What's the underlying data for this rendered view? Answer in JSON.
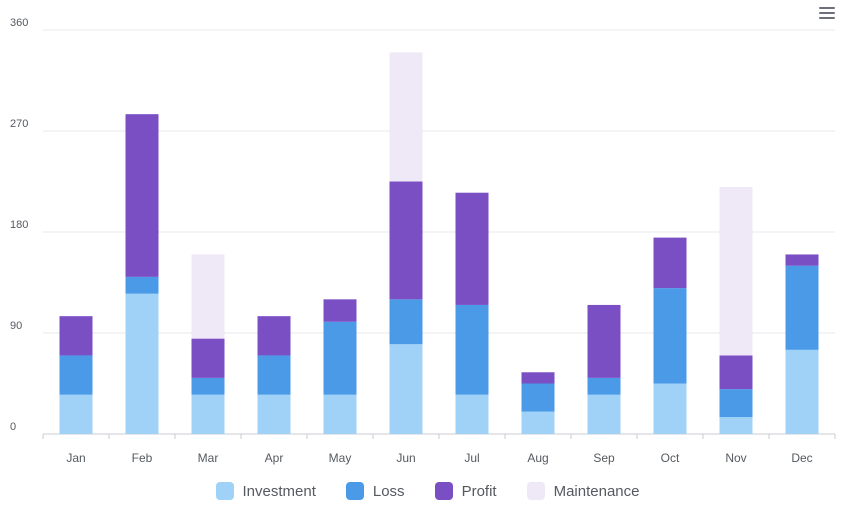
{
  "toolbar": {
    "menu_icon": "hamburger-menu-icon"
  },
  "chart_data": {
    "type": "bar",
    "stacked": true,
    "categories": [
      "Jan",
      "Feb",
      "Mar",
      "Apr",
      "May",
      "Jun",
      "Jul",
      "Aug",
      "Sep",
      "Oct",
      "Nov",
      "Dec"
    ],
    "series": [
      {
        "name": "Investment",
        "color": "#a0d2f8",
        "values": [
          35,
          125,
          35,
          35,
          35,
          80,
          35,
          20,
          35,
          45,
          15,
          75
        ]
      },
      {
        "name": "Loss",
        "color": "#4a9ae8",
        "values": [
          35,
          15,
          15,
          35,
          65,
          40,
          80,
          25,
          15,
          85,
          25,
          75
        ]
      },
      {
        "name": "Profit",
        "color": "#7b4fc4",
        "values": [
          35,
          145,
          35,
          35,
          20,
          105,
          100,
          10,
          65,
          45,
          30,
          10
        ]
      },
      {
        "name": "Maintenance",
        "color": "#efe8f6",
        "values": [
          0,
          0,
          75,
          0,
          0,
          115,
          0,
          0,
          0,
          0,
          150,
          0
        ]
      }
    ],
    "yticks": [
      0,
      90,
      180,
      270,
      360
    ],
    "ylim": [
      0,
      360
    ],
    "grid": true,
    "legend_position": "bottom-center"
  }
}
